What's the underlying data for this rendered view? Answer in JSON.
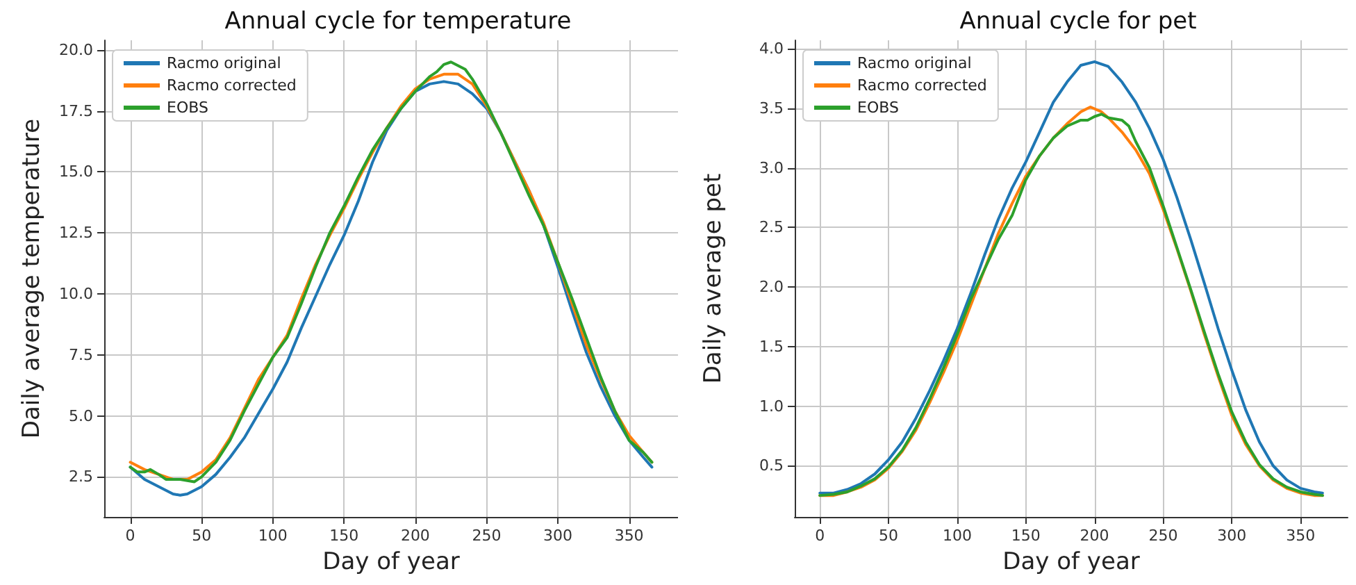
{
  "chart_data": [
    {
      "type": "line",
      "title": "Annual cycle for temperature",
      "xlabel": "Day of year",
      "ylabel": "Daily average temperature",
      "grid": true,
      "legend": "top left",
      "marker": "none",
      "line_style": "solid",
      "xlim": [
        -18.3,
        384.3
      ],
      "xticks": [
        0,
        50,
        100,
        150,
        200,
        250,
        300,
        350
      ],
      "ylim": [
        0.86,
        20.39
      ],
      "yticks": [
        2.5,
        {
          "value": 5,
          "label": "5.0"
        },
        7.5,
        {
          "value": 10,
          "label": "10.0"
        },
        12.5,
        {
          "value": 15,
          "label": "15.0"
        },
        17.5,
        {
          "value": 20,
          "label": "20.0"
        }
      ],
      "series": [
        {
          "name": "Racmo original",
          "color": "#1f77b4",
          "x": [
            0,
            10,
            20,
            30,
            35,
            40,
            50,
            60,
            70,
            80,
            90,
            100,
            110,
            120,
            130,
            140,
            150,
            160,
            170,
            180,
            190,
            200,
            210,
            220,
            230,
            240,
            250,
            260,
            270,
            280,
            290,
            300,
            310,
            320,
            330,
            340,
            350,
            360,
            366
          ],
          "values": [
            2.9,
            2.4,
            2.1,
            1.8,
            1.75,
            1.8,
            2.1,
            2.6,
            3.3,
            4.1,
            5.1,
            6.1,
            7.2,
            8.6,
            9.9,
            11.2,
            12.4,
            13.8,
            15.4,
            16.7,
            17.6,
            18.3,
            18.6,
            18.7,
            18.6,
            18.2,
            17.6,
            16.6,
            15.4,
            14.2,
            12.8,
            11.1,
            9.3,
            7.6,
            6.2,
            5.0,
            4.0,
            3.3,
            2.9
          ]
        },
        {
          "name": "Racmo corrected",
          "color": "#ff7f0e",
          "x": [
            0,
            10,
            20,
            30,
            40,
            50,
            60,
            70,
            80,
            90,
            100,
            110,
            120,
            130,
            140,
            150,
            160,
            170,
            180,
            190,
            200,
            210,
            220,
            230,
            240,
            250,
            260,
            270,
            280,
            290,
            300,
            310,
            320,
            330,
            340,
            350,
            360,
            366
          ],
          "values": [
            3.1,
            2.8,
            2.6,
            2.4,
            2.4,
            2.7,
            3.2,
            4.1,
            5.3,
            6.5,
            7.4,
            8.3,
            9.8,
            11.2,
            12.4,
            13.5,
            14.7,
            15.8,
            16.8,
            17.7,
            18.4,
            18.8,
            19.0,
            19.0,
            18.6,
            17.7,
            16.6,
            15.4,
            14.2,
            12.9,
            11.3,
            9.6,
            7.9,
            6.5,
            5.2,
            4.2,
            3.5,
            3.1
          ]
        },
        {
          "name": "EOBS",
          "color": "#2ca02c",
          "x": [
            0,
            5,
            10,
            14,
            20,
            25,
            30,
            35,
            40,
            45,
            50,
            60,
            70,
            80,
            90,
            100,
            110,
            120,
            130,
            140,
            150,
            160,
            170,
            180,
            190,
            200,
            210,
            215,
            220,
            225,
            235,
            240,
            250,
            260,
            270,
            280,
            290,
            300,
            310,
            320,
            330,
            340,
            350,
            360,
            366
          ],
          "values": [
            2.9,
            2.7,
            2.7,
            2.8,
            2.6,
            2.4,
            2.4,
            2.4,
            2.35,
            2.3,
            2.5,
            3.1,
            4.0,
            5.2,
            6.3,
            7.4,
            8.2,
            9.6,
            11.1,
            12.5,
            13.6,
            14.8,
            15.9,
            16.8,
            17.6,
            18.3,
            18.9,
            19.1,
            19.4,
            19.5,
            19.2,
            18.8,
            17.8,
            16.6,
            15.3,
            14.0,
            12.8,
            11.3,
            9.8,
            8.2,
            6.6,
            5.2,
            4.0,
            3.5,
            3.1
          ]
        }
      ]
    },
    {
      "type": "line",
      "title": "Annual cycle for pet",
      "xlabel": "Day of year",
      "ylabel": "Daily average pet",
      "grid": true,
      "legend": "top left",
      "marker": "none",
      "line_style": "solid",
      "xlim": [
        -18.3,
        384.3
      ],
      "xticks": [
        0,
        50,
        100,
        150,
        200,
        250,
        300,
        350
      ],
      "ylim": [
        0.07,
        4.07
      ],
      "yticks": [
        0.5,
        {
          "value": 1,
          "label": "1.0"
        },
        1.5,
        {
          "value": 2,
          "label": "2.0"
        },
        2.5,
        {
          "value": 3,
          "label": "3.0"
        },
        3.5,
        {
          "value": 4,
          "label": "4.0"
        }
      ],
      "series": [
        {
          "name": "Racmo original",
          "color": "#1f77b4",
          "x": [
            0,
            10,
            20,
            30,
            40,
            50,
            60,
            70,
            80,
            90,
            100,
            110,
            120,
            130,
            140,
            150,
            160,
            170,
            180,
            190,
            200,
            210,
            220,
            230,
            240,
            250,
            260,
            270,
            280,
            290,
            300,
            310,
            320,
            330,
            340,
            350,
            360,
            366
          ],
          "values": [
            0.27,
            0.27,
            0.3,
            0.35,
            0.43,
            0.55,
            0.7,
            0.9,
            1.13,
            1.38,
            1.65,
            1.95,
            2.27,
            2.57,
            2.83,
            3.05,
            3.3,
            3.55,
            3.72,
            3.86,
            3.89,
            3.85,
            3.72,
            3.55,
            3.33,
            3.07,
            2.75,
            2.4,
            2.03,
            1.65,
            1.3,
            0.97,
            0.7,
            0.5,
            0.38,
            0.31,
            0.28,
            0.27
          ]
        },
        {
          "name": "Racmo corrected",
          "color": "#ff7f0e",
          "x": [
            0,
            10,
            20,
            30,
            40,
            50,
            60,
            70,
            80,
            90,
            100,
            110,
            120,
            130,
            140,
            150,
            160,
            170,
            180,
            190,
            197,
            205,
            210,
            220,
            230,
            240,
            250,
            260,
            270,
            280,
            290,
            300,
            310,
            320,
            330,
            340,
            350,
            360,
            366
          ],
          "values": [
            0.25,
            0.25,
            0.28,
            0.32,
            0.38,
            0.48,
            0.62,
            0.8,
            1.03,
            1.28,
            1.55,
            1.85,
            2.15,
            2.45,
            2.7,
            2.93,
            3.1,
            3.25,
            3.37,
            3.47,
            3.51,
            3.47,
            3.42,
            3.3,
            3.15,
            2.95,
            2.65,
            2.32,
            1.97,
            1.6,
            1.25,
            0.92,
            0.68,
            0.5,
            0.38,
            0.31,
            0.27,
            0.25,
            0.25
          ]
        },
        {
          "name": "EOBS",
          "color": "#2ca02c",
          "x": [
            0,
            10,
            20,
            30,
            40,
            50,
            60,
            70,
            80,
            90,
            100,
            110,
            120,
            130,
            140,
            145,
            150,
            160,
            170,
            180,
            190,
            195,
            200,
            205,
            210,
            220,
            225,
            230,
            240,
            250,
            260,
            270,
            280,
            290,
            300,
            310,
            320,
            330,
            340,
            350,
            360,
            366
          ],
          "values": [
            0.25,
            0.26,
            0.28,
            0.33,
            0.39,
            0.49,
            0.63,
            0.82,
            1.06,
            1.32,
            1.6,
            1.9,
            2.15,
            2.4,
            2.6,
            2.75,
            2.9,
            3.1,
            3.25,
            3.35,
            3.4,
            3.4,
            3.43,
            3.45,
            3.42,
            3.4,
            3.35,
            3.22,
            3.0,
            2.68,
            2.33,
            1.98,
            1.62,
            1.27,
            0.95,
            0.7,
            0.51,
            0.39,
            0.32,
            0.28,
            0.26,
            0.25
          ]
        }
      ]
    }
  ]
}
